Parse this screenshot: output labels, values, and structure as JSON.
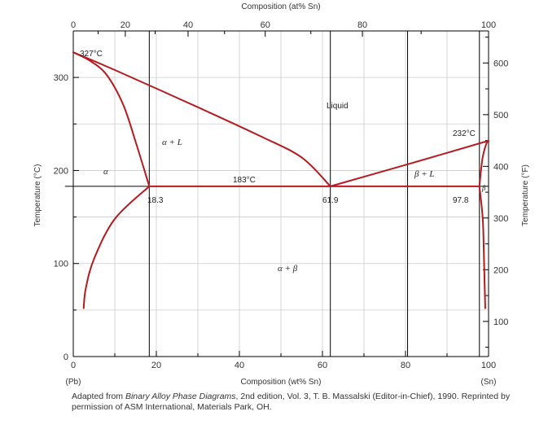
{
  "chart_data": {
    "type": "line",
    "title": "",
    "top_axis_label": "Composition (at% Sn)",
    "top_ticks": [
      0,
      20,
      40,
      60,
      80,
      100
    ],
    "xlabel": "Composition (wt% Sn)",
    "xticks": [
      0,
      20,
      40,
      60,
      80,
      100
    ],
    "xlim": [
      0,
      100
    ],
    "x_end_labels": {
      "left": "(Pb)",
      "right": "(Sn)"
    },
    "ylabel": "Temperature (°C)",
    "yticks": [
      0,
      100,
      200,
      300
    ],
    "ylim": [
      0,
      350
    ],
    "ylabel_right": "Temperature (°F)",
    "yticks_right": [
      100,
      200,
      300,
      400,
      500,
      600
    ],
    "grid": true,
    "series": [
      {
        "name": "",
        "points": [
          [
            0,
            327
          ],
          [
            4,
            318
          ],
          [
            8,
            303
          ],
          [
            12,
            271
          ],
          [
            15,
            231
          ],
          [
            18.3,
            183
          ]
        ]
      },
      {
        "name": "",
        "points": [
          [
            0,
            327
          ],
          [
            10,
            308
          ],
          [
            30,
            268
          ],
          [
            45,
            237
          ],
          [
            55,
            214
          ],
          [
            61.9,
            183
          ]
        ]
      },
      {
        "name": "",
        "points": [
          [
            61.9,
            183
          ],
          [
            97.8,
            183
          ]
        ]
      },
      {
        "name": "",
        "points": [
          [
            61.9,
            183
          ],
          [
            80,
            206
          ],
          [
            100,
            232
          ]
        ]
      },
      {
        "name": "",
        "points": [
          [
            100,
            232
          ],
          [
            99.4,
            228
          ],
          [
            98.5,
            212
          ],
          [
            97.8,
            183
          ]
        ]
      },
      {
        "name": "",
        "points": [
          [
            18.3,
            183
          ],
          [
            10,
            148
          ],
          [
            5,
            105
          ],
          [
            3,
            73
          ],
          [
            2.5,
            52
          ]
        ]
      },
      {
        "name": "",
        "points": [
          [
            97.8,
            183
          ],
          [
            98.6,
            148
          ],
          [
            98.9,
            105
          ],
          [
            99.2,
            52
          ]
        ]
      },
      {
        "name": "",
        "points": [
          [
            18.3,
            183
          ],
          [
            61.9,
            183
          ]
        ]
      }
    ],
    "annotations": {
      "pb_melting": "327°C",
      "sn_melting": "232°C",
      "eutectic": "183°C",
      "liquid": "Liquid",
      "alpha_liquid": "α + L",
      "alpha": "α",
      "beta_liquid": "β + L",
      "beta": "β",
      "alpha_beta": "α + β",
      "c18": "18.3",
      "c62": "61.9",
      "c98": "97.8"
    },
    "colors": {
      "phase_boundary": "#b51b20",
      "grid": "#cccccc",
      "axis": "#000000"
    }
  },
  "caption": {
    "prefix": "Adapted from ",
    "title": "Binary Alloy Phase Diagrams",
    "suffix": ", 2nd edition, Vol. 3, T. B. Massalski (Editor-in-Chief), 1990. Reprinted by permission of ASM International, Materials Park, OH."
  }
}
